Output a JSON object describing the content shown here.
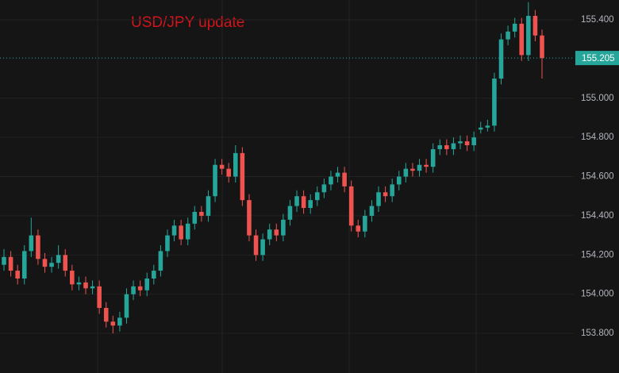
{
  "chart_data": {
    "type": "candlestick",
    "title": "USD/JPY update",
    "up_color": "#26a69a",
    "down_color": "#ef5350",
    "title_color": "#d4141c",
    "ylim": [
      153.598,
      155.501
    ],
    "yticks": [
      {
        "value": 153.8,
        "label": "153.800"
      },
      {
        "value": 154.0,
        "label": "154.000"
      },
      {
        "value": 154.2,
        "label": "154.200"
      },
      {
        "value": 154.4,
        "label": "154.400"
      },
      {
        "value": 154.6,
        "label": "154.600"
      },
      {
        "value": 154.8,
        "label": "154.800"
      },
      {
        "value": 155.0,
        "label": "155.000"
      },
      {
        "value": 155.4,
        "label": "155.400"
      }
    ],
    "grid": true,
    "last_price": 155.205,
    "ohlc": [
      [
        154.15,
        154.23,
        154.12,
        154.19
      ],
      [
        154.19,
        154.22,
        154.09,
        154.12
      ],
      [
        154.12,
        154.15,
        154.05,
        154.08
      ],
      [
        154.08,
        154.25,
        154.05,
        154.22
      ],
      [
        154.22,
        154.39,
        154.19,
        154.3
      ],
      [
        154.3,
        154.33,
        154.15,
        154.18
      ],
      [
        154.18,
        154.21,
        154.11,
        154.14
      ],
      [
        154.14,
        154.19,
        154.11,
        154.16
      ],
      [
        154.16,
        154.25,
        154.13,
        154.2
      ],
      [
        154.2,
        154.23,
        154.09,
        154.12
      ],
      [
        154.12,
        154.15,
        154.02,
        154.05
      ],
      [
        154.05,
        154.09,
        154.02,
        154.06
      ],
      [
        154.06,
        154.09,
        154.0,
        154.03
      ],
      [
        154.03,
        154.07,
        154.0,
        154.04
      ],
      [
        154.04,
        154.07,
        153.9,
        153.93
      ],
      [
        153.93,
        153.96,
        153.83,
        153.86
      ],
      [
        153.86,
        153.89,
        153.8,
        153.84
      ],
      [
        153.84,
        153.91,
        153.81,
        153.88
      ],
      [
        153.88,
        154.03,
        153.85,
        154.0
      ],
      [
        154.0,
        154.07,
        153.97,
        154.04
      ],
      [
        154.04,
        154.07,
        153.99,
        154.02
      ],
      [
        154.02,
        154.11,
        153.99,
        154.08
      ],
      [
        154.08,
        154.15,
        154.05,
        154.12
      ],
      [
        154.12,
        154.25,
        154.09,
        154.22
      ],
      [
        154.22,
        154.33,
        154.19,
        154.3
      ],
      [
        154.3,
        154.38,
        154.27,
        154.35
      ],
      [
        154.35,
        154.38,
        154.25,
        154.28
      ],
      [
        154.28,
        154.39,
        154.25,
        154.36
      ],
      [
        154.36,
        154.45,
        154.33,
        154.42
      ],
      [
        154.42,
        154.45,
        154.37,
        154.4
      ],
      [
        154.4,
        154.53,
        154.37,
        154.5
      ],
      [
        154.5,
        154.69,
        154.47,
        154.66
      ],
      [
        154.66,
        154.69,
        154.61,
        154.64
      ],
      [
        154.64,
        154.67,
        154.57,
        154.6
      ],
      [
        154.6,
        154.76,
        154.57,
        154.72
      ],
      [
        154.72,
        154.75,
        154.45,
        154.48
      ],
      [
        154.48,
        154.51,
        154.27,
        154.3
      ],
      [
        154.3,
        154.33,
        154.17,
        154.2
      ],
      [
        154.2,
        154.31,
        154.17,
        154.28
      ],
      [
        154.28,
        154.36,
        154.25,
        154.33
      ],
      [
        154.33,
        154.36,
        154.27,
        154.3
      ],
      [
        154.3,
        154.41,
        154.27,
        154.38
      ],
      [
        154.38,
        154.48,
        154.35,
        154.45
      ],
      [
        154.45,
        154.53,
        154.42,
        154.5
      ],
      [
        154.5,
        154.53,
        154.41,
        154.44
      ],
      [
        154.44,
        154.51,
        154.41,
        154.48
      ],
      [
        154.48,
        154.55,
        154.45,
        154.52
      ],
      [
        154.52,
        154.59,
        154.49,
        154.56
      ],
      [
        154.56,
        154.63,
        154.53,
        154.6
      ],
      [
        154.6,
        154.65,
        154.57,
        154.62
      ],
      [
        154.62,
        154.65,
        154.52,
        154.55
      ],
      [
        154.55,
        154.58,
        154.32,
        154.35
      ],
      [
        154.35,
        154.38,
        154.29,
        154.32
      ],
      [
        154.32,
        154.43,
        154.29,
        154.4
      ],
      [
        154.4,
        154.48,
        154.37,
        154.45
      ],
      [
        154.45,
        154.55,
        154.42,
        154.52
      ],
      [
        154.52,
        154.55,
        154.47,
        154.5
      ],
      [
        154.5,
        154.59,
        154.47,
        154.56
      ],
      [
        154.56,
        154.63,
        154.53,
        154.6
      ],
      [
        154.6,
        154.67,
        154.57,
        154.64
      ],
      [
        154.64,
        154.67,
        154.6,
        154.63
      ],
      [
        154.63,
        154.69,
        154.6,
        154.66
      ],
      [
        154.66,
        154.69,
        154.62,
        154.65
      ],
      [
        154.65,
        154.77,
        154.62,
        154.74
      ],
      [
        154.74,
        154.79,
        154.71,
        154.76
      ],
      [
        154.76,
        154.79,
        154.71,
        154.74
      ],
      [
        154.74,
        154.8,
        154.71,
        154.77
      ],
      [
        154.77,
        154.81,
        154.74,
        154.78
      ],
      [
        154.78,
        154.81,
        154.73,
        154.76
      ],
      [
        154.76,
        154.83,
        154.73,
        154.8
      ],
      [
        154.84,
        154.88,
        154.82,
        154.85
      ],
      [
        154.85,
        154.89,
        154.83,
        154.86
      ],
      [
        154.86,
        155.13,
        154.83,
        155.1
      ],
      [
        155.1,
        155.33,
        155.07,
        155.3
      ],
      [
        155.3,
        155.37,
        155.27,
        155.34
      ],
      [
        155.34,
        155.41,
        155.31,
        155.38
      ],
      [
        155.38,
        155.41,
        155.19,
        155.22
      ],
      [
        155.22,
        155.49,
        155.19,
        155.42
      ],
      [
        155.42,
        155.45,
        155.29,
        155.32
      ],
      [
        155.32,
        155.35,
        155.1,
        155.205
      ]
    ]
  }
}
